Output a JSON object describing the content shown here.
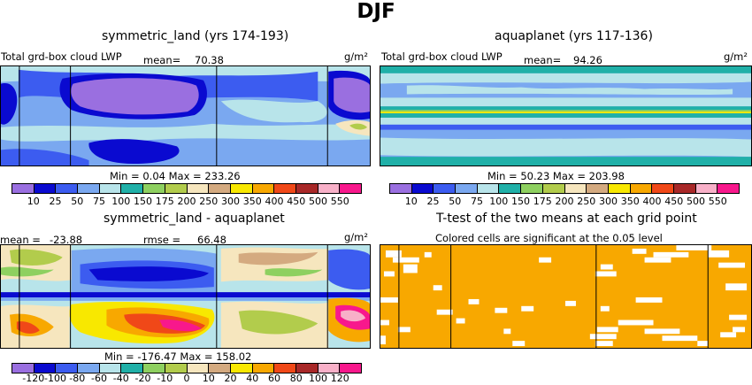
{
  "figure_title": "DJF",
  "panels": {
    "p1": {
      "title": "symmetric_land (yrs 174-193)",
      "var": "Total grd-box cloud LWP",
      "units": "g/m²",
      "mean_label": "mean=",
      "mean": "70.38",
      "minmax": "Min =   0.04 Max = 233.26"
    },
    "p2": {
      "title": "aquaplanet (yrs 117-136)",
      "var": "Total grd-box cloud LWP",
      "units": "g/m²",
      "mean_label": "mean=",
      "mean": "94.26",
      "minmax": "Min =  50.23 Max = 203.98"
    },
    "p3": {
      "title": "symmetric_land - aquaplanet",
      "units": "g/m²",
      "mean_label": "mean =",
      "mean": "-23.88",
      "rmse_label": "rmse =",
      "rmse": "66.48",
      "minmax": "Min = -176.47 Max = 158.02"
    },
    "p4": {
      "title": "T-test of the two means at each grid point",
      "subtitle": "Colored cells are significant at the 0.05 level"
    }
  },
  "colorbar_abs": {
    "colors": [
      "#9a6fe0",
      "#0a0ad0",
      "#3c5cf0",
      "#7aa8f0",
      "#b8e4ea",
      "#20b0a8",
      "#8ed060",
      "#b2cc4c",
      "#f6e6be",
      "#d4aa80",
      "#f8e800",
      "#f8a800",
      "#f04818",
      "#a82828",
      "#f8b0c8",
      "#f8188c"
    ],
    "labels": [
      "10",
      "25",
      "50",
      "75",
      "100",
      "150",
      "175",
      "200",
      "250",
      "300",
      "350",
      "400",
      "450",
      "500",
      "550"
    ]
  },
  "colorbar_diff": {
    "colors": [
      "#9a6fe0",
      "#0a0ad0",
      "#3c5cf0",
      "#7aa8f0",
      "#b8e4ea",
      "#20b0a8",
      "#8ed060",
      "#b2cc4c",
      "#f6e6be",
      "#d4aa80",
      "#f8e800",
      "#f8a800",
      "#f04818",
      "#a82828",
      "#f8b0c8",
      "#f8188c"
    ],
    "labels": [
      "-120",
      "-100",
      "-80",
      "-60",
      "-40",
      "-20",
      "-10",
      "0",
      "10",
      "20",
      "40",
      "60",
      "80",
      "100",
      "120"
    ]
  },
  "chart_data": [
    {
      "type": "heatmap",
      "title": "symmetric_land (yrs 174-193)",
      "variable": "Total grd-box cloud LWP",
      "units": "g/m²",
      "mean": 70.38,
      "min": 0.04,
      "max": 233.26,
      "levels": [
        10,
        25,
        50,
        75,
        100,
        150,
        175,
        200,
        250,
        300,
        350,
        400,
        450,
        500,
        550
      ]
    },
    {
      "type": "heatmap",
      "title": "aquaplanet (yrs 117-136)",
      "variable": "Total grd-box cloud LWP",
      "units": "g/m²",
      "mean": 94.26,
      "min": 50.23,
      "max": 203.98,
      "levels": [
        10,
        25,
        50,
        75,
        100,
        150,
        175,
        200,
        250,
        300,
        350,
        400,
        450,
        500,
        550
      ]
    },
    {
      "type": "heatmap",
      "title": "symmetric_land - aquaplanet",
      "units": "g/m²",
      "mean": -23.88,
      "rmse": 66.48,
      "min": -176.47,
      "max": 158.02,
      "levels": [
        -120,
        -100,
        -80,
        -60,
        -40,
        -20,
        -10,
        0,
        10,
        20,
        40,
        60,
        80,
        100,
        120
      ]
    },
    {
      "type": "heatmap",
      "title": "T-test of the two means at each grid point",
      "subtitle": "Colored cells are significant at the 0.05 level",
      "significance_level": 0.05
    }
  ]
}
